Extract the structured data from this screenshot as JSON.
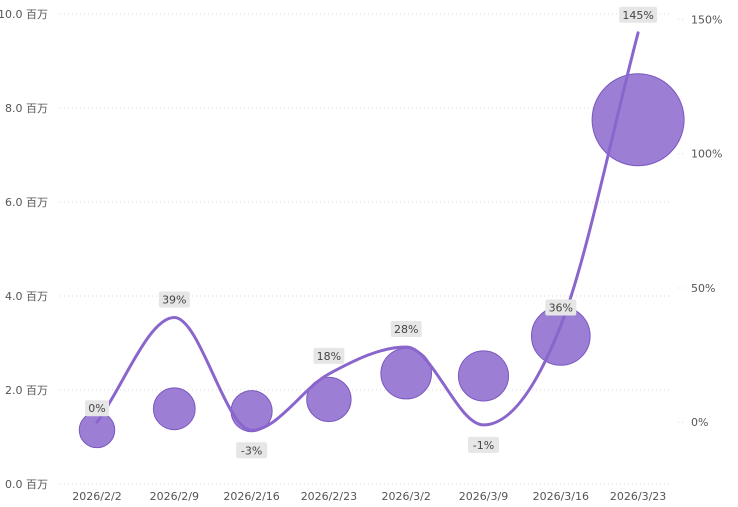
{
  "chart_data": {
    "type": "bubble-line-combo",
    "categories": [
      "2026/2/2",
      "2026/2/9",
      "2026/2/16",
      "2026/2/23",
      "2026/3/2",
      "2026/3/9",
      "2026/3/16",
      "2026/3/23"
    ],
    "left_axis": {
      "ticks": [
        0,
        2,
        4,
        6,
        8,
        10
      ],
      "tick_labels": [
        "0.0 百万",
        "2.0 百万",
        "4.0 百万",
        "6.0 百万",
        "8.0 百万",
        "10.0 百万"
      ],
      "ylim": [
        0,
        10
      ]
    },
    "right_axis": {
      "ticks": [
        0,
        50,
        100,
        150
      ],
      "tick_labels": [
        "0%",
        "50%",
        "100%",
        "150%"
      ],
      "ylim": [
        -23,
        152
      ]
    },
    "grid": true,
    "series": [
      {
        "type": "bubble",
        "axis": "left",
        "values": [
          1.15,
          1.6,
          1.55,
          1.8,
          2.35,
          2.3,
          3.15,
          7.75
        ],
        "color": "#8e6ccf"
      },
      {
        "type": "line",
        "axis": "right",
        "smooth": true,
        "values": [
          0,
          39,
          -3,
          18,
          28,
          -1,
          36,
          145
        ],
        "labels": [
          "0%",
          "39%",
          "-3%",
          "18%",
          "28%",
          "-1%",
          "36%",
          "145%"
        ],
        "color": "#8a66cc"
      }
    ]
  }
}
